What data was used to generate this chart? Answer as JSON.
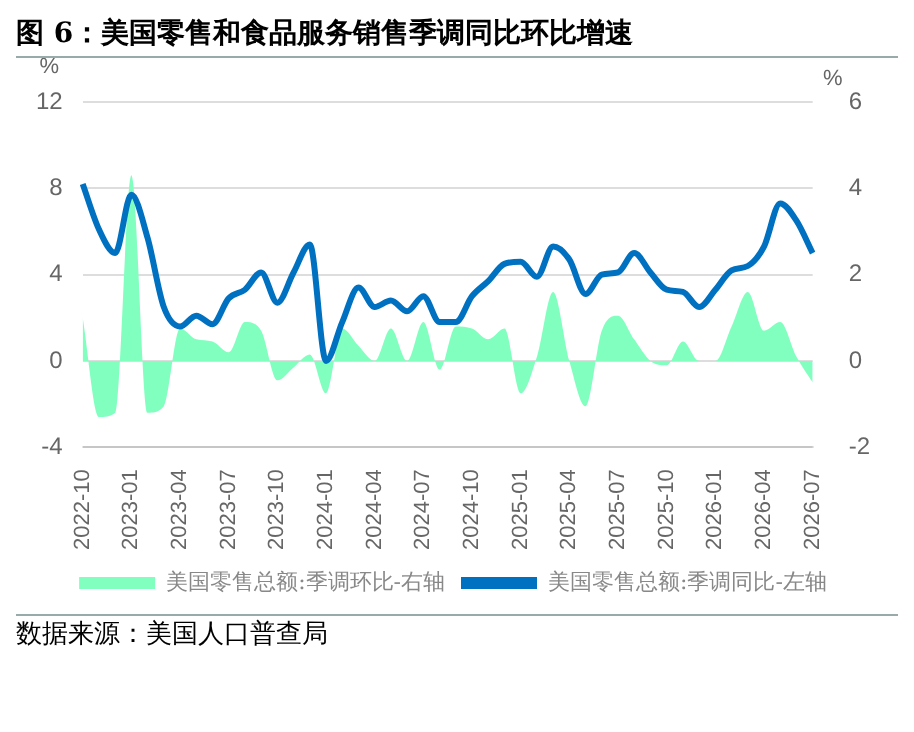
{
  "chart_data": {
    "type": "line",
    "title": "图 6：美国零售和食品服务销售季调同比环比增速",
    "ylabel": "%",
    "y2label": "%",
    "categories": [
      "2022-10",
      null,
      null,
      "2023-01",
      null,
      null,
      "2023-04",
      null,
      null,
      "2023-07",
      null,
      null,
      "2023-10",
      null,
      null,
      "2024-01",
      null,
      null,
      "2024-04",
      null,
      null,
      "2024-07",
      null,
      null,
      "2024-10",
      null,
      null,
      "2025-01",
      null,
      null,
      "2025-04",
      null,
      null,
      "2025-07",
      null,
      null,
      "2025-10",
      null,
      null,
      "2026-01",
      null,
      null,
      "2026-04",
      null,
      null,
      "2026-07"
    ],
    "series": [
      {
        "name": "美国零售总额:季调环比-右轴",
        "type": "area",
        "axis": "y2",
        "color": "#80ffbf",
        "values": [
          1.0,
          -1.3,
          -1.2,
          4.3,
          -1.2,
          -1.05,
          0.75,
          0.5,
          0.45,
          0.2,
          0.9,
          0.7,
          -0.45,
          -0.15,
          0.15,
          -0.75,
          0.75,
          0.35,
          0,
          0.75,
          0,
          0.9,
          -0.2,
          0.8,
          0.75,
          0.5,
          0.75,
          -0.75,
          0.1,
          1.6,
          0,
          -1.05,
          0.7,
          1.05,
          0.5,
          0,
          -0.1,
          0.45,
          0,
          0,
          0.8,
          1.6,
          0.7,
          0.9,
          0.1,
          -0.5
        ]
      },
      {
        "name": "美国零售总额:季调同比-左轴",
        "type": "line",
        "color": "#0070c0",
        "values": [
          8.2,
          6.1,
          5.0,
          7.7,
          5.7,
          2.5,
          1.6,
          2.1,
          1.7,
          2.9,
          3.3,
          4.1,
          2.7,
          4.1,
          5.4,
          0,
          1.8,
          3.4,
          2.5,
          2.8,
          2.3,
          3.0,
          1.8,
          1.8,
          3.0,
          3.7,
          4.5,
          4.6,
          3.9,
          5.3,
          4.7,
          3.1,
          4.0,
          4.1,
          5.0,
          4.1,
          3.3,
          3.2,
          2.5,
          3.3,
          4.2,
          4.4,
          5.3,
          7.3,
          6.5,
          5.0
        ]
      }
    ],
    "ylim": [
      -4,
      12
    ],
    "yticks": [
      -4,
      0,
      4,
      8,
      12
    ],
    "y2lim": [
      -2,
      6
    ],
    "y2ticks": [
      -2,
      0,
      2,
      4,
      6
    ],
    "grid": "y",
    "legend": "bottom",
    "marker": "none",
    "annotations": [
      "数据来源：美国人口普查局"
    ]
  }
}
